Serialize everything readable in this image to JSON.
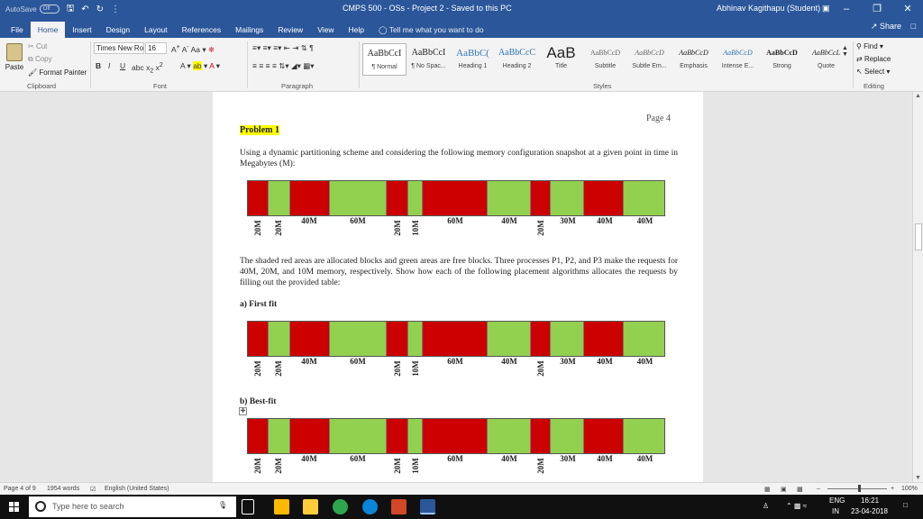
{
  "titlebar": {
    "autosave_label": "AutoSave",
    "autosave_state": "Off",
    "doc_title": "CMPS 500 - OSs - Project 2  -  Saved to this PC",
    "user_name": "Abhinav Kagithapu (Student)"
  },
  "tabs": [
    "File",
    "Home",
    "Insert",
    "Design",
    "Layout",
    "References",
    "Mailings",
    "Review",
    "View",
    "Help"
  ],
  "tell_me": "Tell me what you want to do",
  "share": "Share",
  "ribbon": {
    "clipboard": {
      "paste": "Paste",
      "cut": "Cut",
      "copy": "Copy",
      "format_painter": "Format Painter",
      "label": "Clipboard"
    },
    "font": {
      "family": "Times New Ro",
      "size": "16",
      "label": "Font"
    },
    "paragraph": {
      "label": "Paragraph"
    },
    "styles": {
      "label": "Styles",
      "items": [
        {
          "sample": "AaBbCcI",
          "name": "¶ Normal"
        },
        {
          "sample": "AaBbCcI",
          "name": "¶ No Spac..."
        },
        {
          "sample": "AaBbC(",
          "name": "Heading 1"
        },
        {
          "sample": "AaBbCcC",
          "name": "Heading 2"
        },
        {
          "sample": "AaB",
          "name": "Title"
        },
        {
          "sample": "AaBbCcD",
          "name": "Subtitle"
        },
        {
          "sample": "AaBbCcD",
          "name": "Subtle Em..."
        },
        {
          "sample": "AaBbCcD",
          "name": "Emphasis"
        },
        {
          "sample": "AaBbCcD",
          "name": "Intense E..."
        },
        {
          "sample": "AaBbCcD",
          "name": "Strong"
        },
        {
          "sample": "AaBbCcL",
          "name": "Quote"
        }
      ]
    },
    "editing": {
      "find": "Find",
      "replace": "Replace",
      "select": "Select",
      "label": "Editing"
    }
  },
  "document": {
    "page_label": "Page 4",
    "problem_title": "Problem 1",
    "intro": "Using a dynamic partitioning scheme and considering the following memory configuration snapshot at a given point in time in Megabytes (M):",
    "description": "The shaded red areas are allocated blocks and green areas are free blocks. Three processes P1, P2, and P3 make the requests for 40M, 20M, and 10M memory, respectively. Show how each of the following placement algorithms allocates the requests by filling out the provided table:",
    "section_a": "a)   First fit",
    "section_b": "b)   Best-fit",
    "segments": [
      {
        "color": "#cc0000",
        "label": "20M",
        "vertical": true
      },
      {
        "color": "#92d050",
        "label": "20M",
        "vertical": true
      },
      {
        "color": "#cc0000",
        "label": "40M",
        "vertical": false
      },
      {
        "color": "#92d050",
        "label": "60M",
        "vertical": false
      },
      {
        "color": "#cc0000",
        "label": "20M",
        "vertical": true
      },
      {
        "color": "#92d050",
        "label": "10M",
        "vertical": true
      },
      {
        "color": "#cc0000",
        "label": "60M",
        "vertical": false
      },
      {
        "color": "#92d050",
        "label": "40M",
        "vertical": false
      },
      {
        "color": "#cc0000",
        "label": "20M",
        "vertical": true
      },
      {
        "color": "#92d050",
        "label": "30M",
        "vertical": false
      },
      {
        "color": "#cc0000",
        "label": "40M",
        "vertical": false
      },
      {
        "color": "#92d050",
        "label": "40M",
        "vertical": false
      }
    ]
  },
  "statusbar": {
    "page": "Page 4 of 9",
    "words": "1954 words",
    "language": "English (United States)",
    "zoom": "100%"
  },
  "taskbar": {
    "search_placeholder": "Type here to search",
    "lang": "ENG",
    "lang2": "IN",
    "time": "16:21",
    "date": "23-04-2018"
  }
}
